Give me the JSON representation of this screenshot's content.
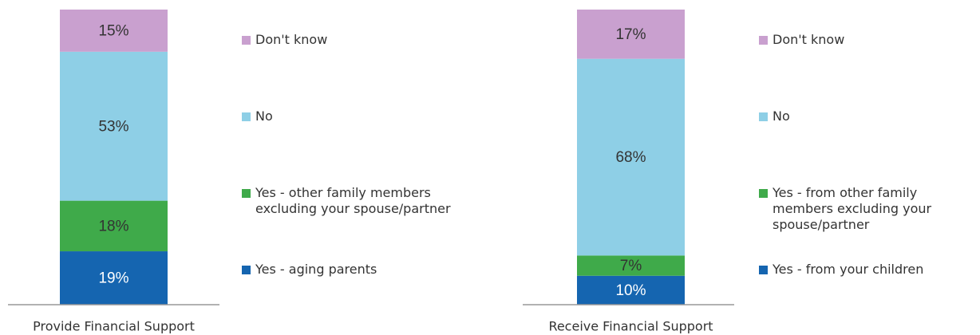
{
  "chart_data": [
    {
      "type": "bar",
      "stacked": true,
      "categories": [
        "Provide Financial Support"
      ],
      "series": [
        {
          "name": "Yes - aging parents",
          "color": "#1565b0",
          "values": [
            19
          ],
          "value_labels": [
            "19%"
          ]
        },
        {
          "name": "Yes - other family members excluding your spouse/partner",
          "color": "#3faa4a",
          "values": [
            18
          ],
          "value_labels": [
            "18%"
          ]
        },
        {
          "name": "No",
          "color": "#8ecfe6",
          "values": [
            53
          ],
          "value_labels": [
            "53%"
          ]
        },
        {
          "name": "Don't know",
          "color": "#c9a0cf",
          "values": [
            15
          ],
          "value_labels": [
            "15%"
          ]
        }
      ]
    },
    {
      "type": "bar",
      "stacked": true,
      "categories": [
        "Receive Financial Support"
      ],
      "series": [
        {
          "name": "Yes - from your children",
          "color": "#1565b0",
          "values": [
            10
          ],
          "value_labels": [
            "10%"
          ]
        },
        {
          "name": "Yes - from other family members excluding your spouse/partner",
          "color": "#3faa4a",
          "values": [
            7
          ],
          "value_labels": [
            "7%"
          ]
        },
        {
          "name": "No",
          "color": "#8ecfe6",
          "values": [
            68
          ],
          "value_labels": [
            "68%"
          ]
        },
        {
          "name": "Don't know",
          "color": "#c9a0cf",
          "values": [
            17
          ],
          "value_labels": [
            "17%"
          ]
        }
      ]
    }
  ]
}
